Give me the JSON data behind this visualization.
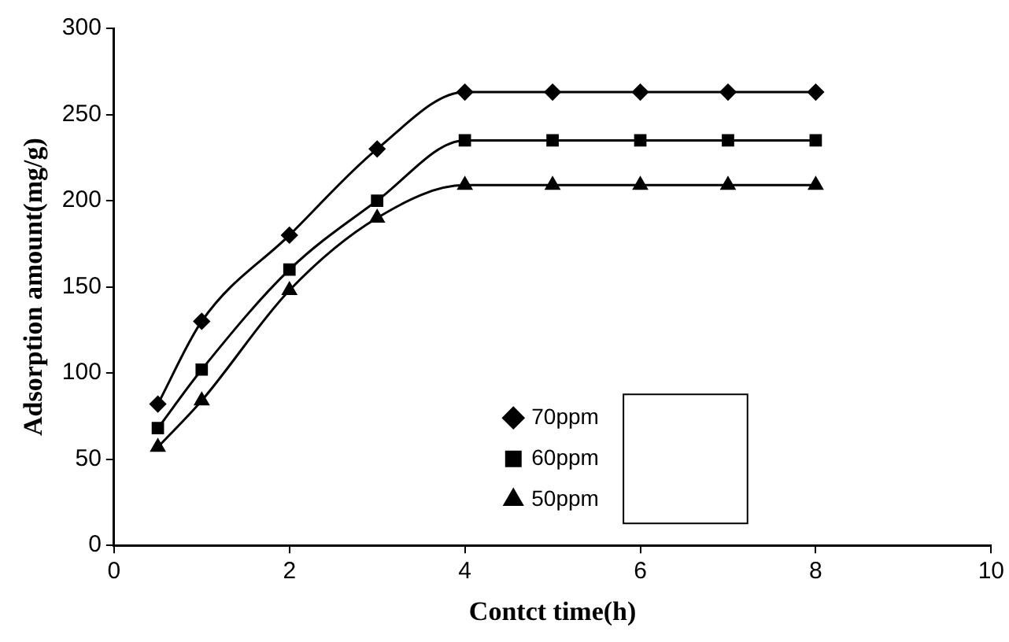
{
  "chart_data": {
    "type": "line",
    "xlabel": "Contct time(h)",
    "ylabel": "Adsorption amount(mg/g)",
    "x": [
      0.5,
      1,
      2,
      3,
      4,
      5,
      6,
      7,
      8
    ],
    "series": [
      {
        "name": "70ppm",
        "color": "#000000",
        "marker": "diamond",
        "values": [
          82,
          130,
          180,
          230,
          263,
          263,
          263,
          263,
          263
        ]
      },
      {
        "name": "60ppm",
        "color": "#000000",
        "marker": "square",
        "values": [
          68,
          102,
          160,
          200,
          235,
          235,
          235,
          235,
          235
        ]
      },
      {
        "name": "50ppm",
        "color": "#000000",
        "marker": "triangle",
        "values": [
          57,
          84,
          148,
          190,
          209,
          209,
          209,
          209,
          209
        ]
      }
    ],
    "xlim": [
      0,
      10
    ],
    "xticks": [
      0,
      2,
      4,
      6,
      8,
      10
    ],
    "ylim": [
      0,
      300
    ],
    "yticks": [
      0,
      50,
      100,
      150,
      200,
      250,
      300
    ],
    "grid": false,
    "legend": "bottom",
    "line_style": "solid"
  }
}
